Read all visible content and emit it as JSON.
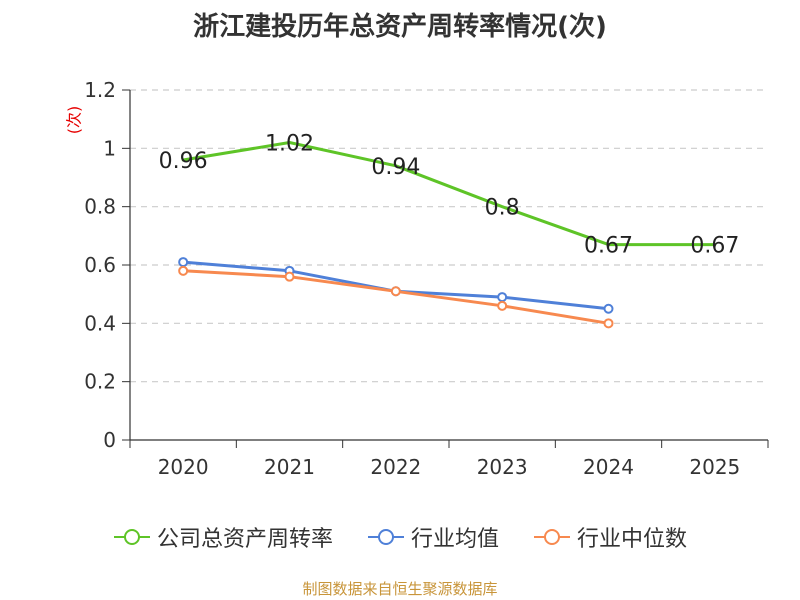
{
  "title": "浙江建投历年总资产周转率情况(次)",
  "source": "制图数据来自恒生聚源数据库",
  "colors": {
    "company": "#5ec427",
    "industry_avg": "#4f80d8",
    "industry_median": "#f7894f",
    "grid": "#cccccc",
    "axis": "#333333",
    "ylabel": "#e60000"
  },
  "chart_data": {
    "type": "line",
    "title": "浙江建投历年总资产周转率情况(次)",
    "xlabel": "",
    "ylabel": "(次)",
    "ylim": [
      0,
      1.2
    ],
    "yticks": [
      "0",
      "0.2",
      "0.4",
      "0.6",
      "0.8",
      "1",
      "1.2"
    ],
    "ytick_values": [
      0,
      0.2,
      0.4,
      0.6,
      0.8,
      1.0,
      1.2
    ],
    "categories": [
      "2020",
      "2021",
      "2022",
      "2023",
      "2024",
      "2025"
    ],
    "grid": true,
    "legend_position": "bottom",
    "series": [
      {
        "name": "公司总资产周转率",
        "color_key": "company",
        "values": [
          0.96,
          1.02,
          0.94,
          0.8,
          0.67,
          0.67
        ],
        "labels": [
          "0.96",
          "1.02",
          "0.94",
          "0.8",
          "0.67",
          "0.67"
        ],
        "markers": false
      },
      {
        "name": "行业均值",
        "color_key": "industry_avg",
        "values": [
          0.61,
          0.58,
          0.51,
          0.49,
          0.45,
          null
        ],
        "markers": true
      },
      {
        "name": "行业中位数",
        "color_key": "industry_median",
        "values": [
          0.58,
          0.56,
          0.51,
          0.46,
          0.4,
          null
        ],
        "markers": true
      }
    ]
  }
}
